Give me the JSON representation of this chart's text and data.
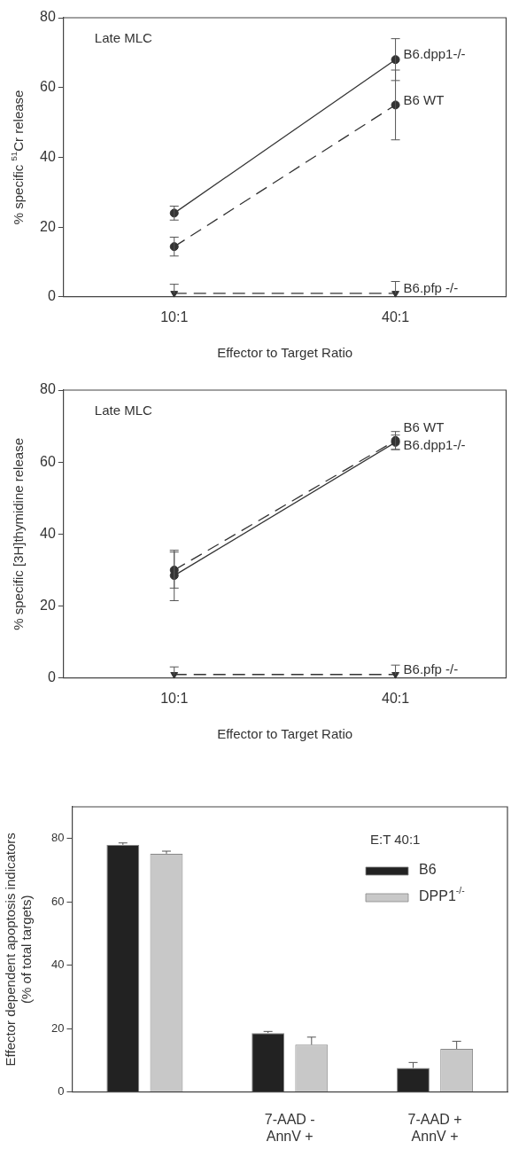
{
  "chart_data": [
    {
      "type": "line",
      "ylabel": "% specific $^{51}$Cr release",
      "xlabel": "Effector to Target Ratio",
      "annotations": [
        "Late MLC"
      ],
      "categories": [
        "10:1",
        "40:1"
      ],
      "ylim": [
        0,
        80
      ],
      "yticks": [
        0,
        20,
        40,
        60,
        80
      ],
      "series": [
        {
          "name": "B6.dpp1-/-",
          "color": "#333333",
          "values": [
            24,
            68
          ],
          "errors": [
            2,
            6
          ],
          "marker": "circle",
          "line_style": "solid"
        },
        {
          "name": "B6 WT",
          "color": "#333333",
          "values": [
            14.4,
            55
          ],
          "errors": [
            2.7,
            10
          ],
          "marker": "circle",
          "line_style": "dashed"
        },
        {
          "name": "B6.pfp -/-",
          "color": "#333333",
          "values": [
            1,
            1
          ],
          "errors": [
            [
              1,
              3.6
            ],
            [
              1,
              4.4
            ]
          ],
          "marker": "triangle",
          "line_style": "dashed"
        }
      ]
    },
    {
      "type": "line",
      "ylabel": "% specific [3H]thymidine release",
      "xlabel": "Effector to Target Ratio",
      "annotations": [
        "Late MLC"
      ],
      "categories": [
        "10:1",
        "40:1"
      ],
      "ylim": [
        0,
        80
      ],
      "yticks": [
        0,
        20,
        40,
        60,
        80
      ],
      "series": [
        {
          "name": "B6 WT",
          "color": "#333333",
          "values": [
            30,
            66
          ],
          "errors": [
            5,
            2.5
          ],
          "marker": "circle",
          "line_style": "dashed"
        },
        {
          "name": "B6.dpp1-/-",
          "color": "#333333",
          "values": [
            28.5,
            65.5
          ],
          "errors": [
            7,
            2
          ],
          "marker": "circle",
          "line_style": "solid"
        },
        {
          "name": "B6.pfp -/-",
          "color": "#333333",
          "values": [
            1,
            1
          ],
          "errors": [
            [
              1,
              3.1
            ],
            [
              1,
              3.6
            ]
          ],
          "marker": "triangle",
          "line_style": "dashed"
        }
      ]
    },
    {
      "type": "bar",
      "ylabel": "Effector dependent apoptosis indicators\n(% of total targets)",
      "categories": [
        null,
        "7-AAD -\nAnnV +",
        "7-AAD +\nAnnV +"
      ],
      "ylim": [
        0,
        90
      ],
      "yticks": [
        0,
        20,
        40,
        60,
        80
      ],
      "legend": "top right",
      "legend_title": "E:T 40:1",
      "series": [
        {
          "name": "B6",
          "color": "#222222",
          "values": [
            78,
            18.6,
            7.6
          ],
          "errors": [
            [
              78,
              78.6
            ],
            [
              18.6,
              19.1
            ],
            [
              7.6,
              9.3
            ]
          ]
        },
        {
          "name": "DPP1$^{-/-}$",
          "color": "#c8c8c8",
          "values": [
            75.2,
            14.9,
            13.6
          ],
          "errors": [
            [
              75.2,
              76
            ],
            [
              14.9,
              17.3
            ],
            [
              13.6,
              16
            ]
          ]
        }
      ]
    }
  ]
}
